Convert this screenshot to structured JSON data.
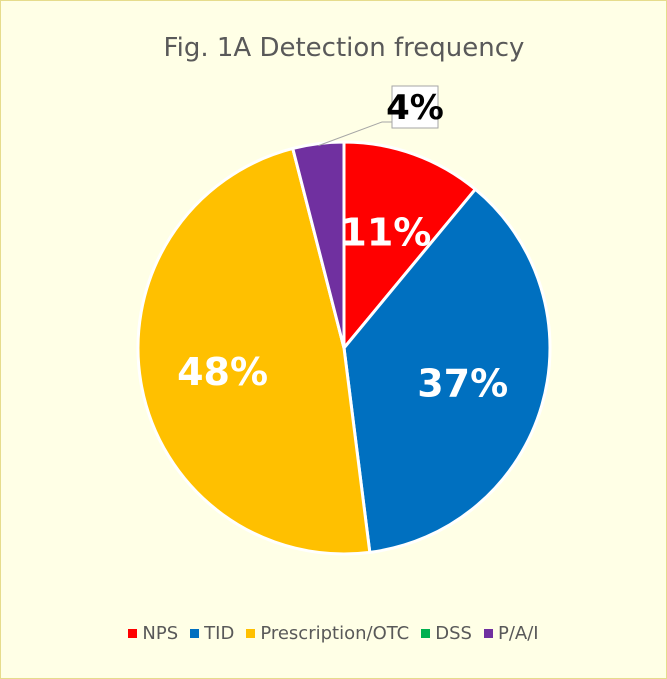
{
  "chart_data": {
    "type": "pie",
    "title": "Fig. 1A Detection frequency",
    "categories": [
      "NPS",
      "TID",
      "Prescription/OTC",
      "DSS",
      "P/A/I"
    ],
    "values": [
      11,
      37,
      48,
      0,
      4
    ],
    "value_labels": [
      "11%",
      "37%",
      "48%",
      null,
      "4%"
    ],
    "colors": [
      "#ff0000",
      "#0070c0",
      "#ffc000",
      "#00b050",
      "#7030a0"
    ],
    "label_colors": [
      "#ffffff",
      "#ffffff",
      "#ffffff",
      null,
      "#000000"
    ],
    "legend": "bottom"
  }
}
